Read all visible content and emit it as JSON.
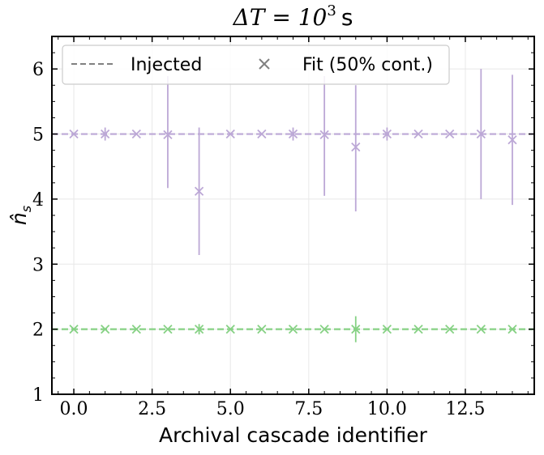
{
  "chart_data": {
    "type": "scatter",
    "title": "ΔT = 10",
    "title_exponent": "3",
    "title_unit": "s",
    "xlabel": "Archival cascade identifier",
    "ylabel": "n̂",
    "ylabel_subscript": "s",
    "xlim": [
      -0.7,
      14.7
    ],
    "ylim": [
      1,
      6.5
    ],
    "x_ticks": [
      0.0,
      2.5,
      5.0,
      7.5,
      10.0,
      12.5
    ],
    "x_tick_labels": [
      "0.0",
      "2.5",
      "5.0",
      "7.5",
      "10.0",
      "12.5"
    ],
    "y_ticks": [
      1,
      2,
      3,
      4,
      5,
      6
    ],
    "y_tick_labels": [
      "1",
      "2",
      "3",
      "4",
      "5",
      "6"
    ],
    "grid": true,
    "legend": {
      "placement": "top-left",
      "entries": [
        {
          "label": "Injected",
          "marker": "dashed-line"
        },
        {
          "label": "Fit (50% cont.)",
          "marker": "x"
        }
      ]
    },
    "injected_lines": [
      {
        "y": 5,
        "color": "#bca8d6"
      },
      {
        "y": 2,
        "color": "#86d184"
      }
    ],
    "series": [
      {
        "color": "#bca8d6",
        "x": [
          0,
          1,
          2,
          3,
          4,
          5,
          6,
          7,
          8,
          9,
          10,
          11,
          12,
          13,
          14
        ],
        "y": [
          5.0,
          5.0,
          5.0,
          4.99,
          4.12,
          5.0,
          5.0,
          5.0,
          4.99,
          4.8,
          5.0,
          5.0,
          5.0,
          5.0,
          4.91
        ],
        "yerr_low": [
          0.0,
          0.1,
          0.0,
          0.82,
          0.98,
          0.0,
          0.0,
          0.1,
          0.94,
          0.99,
          0.1,
          0.0,
          0.0,
          1.0,
          1.0
        ],
        "yerr_high": [
          0.0,
          0.1,
          0.0,
          0.9,
          0.98,
          0.0,
          0.0,
          0.1,
          0.9,
          0.95,
          0.1,
          0.0,
          0.0,
          1.0,
          1.0
        ]
      },
      {
        "color": "#86d184",
        "x": [
          0,
          1,
          2,
          3,
          4,
          5,
          6,
          7,
          8,
          9,
          10,
          11,
          12,
          13,
          14
        ],
        "y": [
          2,
          2,
          2,
          2,
          2,
          2,
          2,
          2,
          2,
          2,
          2,
          2,
          2,
          2,
          2
        ],
        "yerr_low": [
          0.0,
          0.0,
          0.0,
          0.0,
          0.08,
          0.0,
          0.0,
          0.0,
          0.0,
          0.2,
          0.0,
          0.0,
          0.0,
          0.0,
          0.0
        ],
        "yerr_high": [
          0.0,
          0.0,
          0.0,
          0.0,
          0.08,
          0.0,
          0.0,
          0.0,
          0.0,
          0.2,
          0.0,
          0.0,
          0.0,
          0.0,
          0.0
        ]
      }
    ]
  }
}
